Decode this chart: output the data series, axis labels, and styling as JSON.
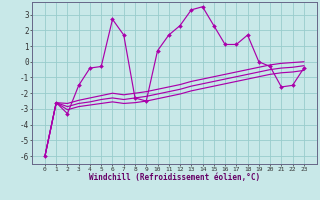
{
  "xlabel": "Windchill (Refroidissement éolien,°C)",
  "x_values": [
    0,
    1,
    2,
    3,
    4,
    5,
    6,
    7,
    8,
    9,
    10,
    11,
    12,
    13,
    14,
    15,
    16,
    17,
    18,
    19,
    20,
    21,
    22,
    23
  ],
  "jagged_line": [
    -6.0,
    -2.6,
    -3.3,
    -1.5,
    -0.4,
    -0.3,
    2.7,
    1.7,
    -2.3,
    -2.5,
    0.7,
    1.7,
    2.3,
    3.3,
    3.5,
    2.3,
    1.1,
    1.1,
    1.7,
    0.0,
    -0.3,
    -1.6,
    -1.5,
    -0.4
  ],
  "line1": [
    -6.0,
    -2.6,
    -2.65,
    -2.45,
    -2.3,
    -2.15,
    -2.0,
    -2.1,
    -2.0,
    -1.9,
    -1.75,
    -1.6,
    -1.45,
    -1.25,
    -1.1,
    -0.95,
    -0.8,
    -0.65,
    -0.5,
    -0.35,
    -0.2,
    -0.1,
    -0.05,
    0.0
  ],
  "line2": [
    -6.0,
    -2.6,
    -2.85,
    -2.65,
    -2.55,
    -2.4,
    -2.3,
    -2.4,
    -2.3,
    -2.2,
    -2.05,
    -1.9,
    -1.75,
    -1.55,
    -1.4,
    -1.25,
    -1.1,
    -0.95,
    -0.8,
    -0.65,
    -0.5,
    -0.4,
    -0.35,
    -0.25
  ],
  "line3": [
    -6.0,
    -2.6,
    -3.05,
    -2.85,
    -2.75,
    -2.65,
    -2.55,
    -2.65,
    -2.6,
    -2.5,
    -2.35,
    -2.2,
    -2.05,
    -1.85,
    -1.7,
    -1.55,
    -1.4,
    -1.25,
    -1.1,
    -0.95,
    -0.8,
    -0.7,
    -0.65,
    -0.55
  ],
  "line_color": "#aa00aa",
  "bg_color": "#c8e8e8",
  "grid_color": "#99cccc",
  "ylim": [
    -6.5,
    3.8
  ],
  "yticks": [
    -6,
    -5,
    -4,
    -3,
    -2,
    -1,
    0,
    1,
    2,
    3
  ],
  "xtick_labels": [
    "0",
    "1",
    "2",
    "3",
    "4",
    "5",
    "6",
    "7",
    "8",
    "9",
    "10",
    "11",
    "12",
    "13",
    "14",
    "15",
    "16",
    "17",
    "18",
    "19",
    "20",
    "21",
    "22",
    "23"
  ]
}
